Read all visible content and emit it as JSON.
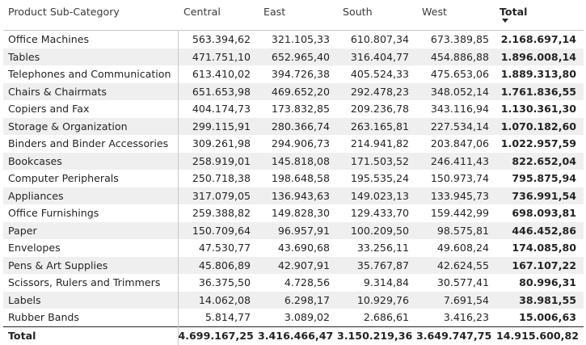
{
  "matrix": {
    "headers": {
      "category": "Product Sub-Category",
      "regions": [
        "Central",
        "East",
        "South",
        "West"
      ],
      "total": "Total",
      "sort_icon": "sort-descending-icon"
    },
    "rows": [
      {
        "name": "Office Machines",
        "values": [
          "563.394,62",
          "321.105,33",
          "610.807,34",
          "673.389,85"
        ],
        "total": "2.168.697,14"
      },
      {
        "name": "Tables",
        "values": [
          "471.751,10",
          "652.965,40",
          "316.404,77",
          "454.886,88"
        ],
        "total": "1.896.008,14"
      },
      {
        "name": "Telephones and Communication",
        "values": [
          "613.410,02",
          "394.726,38",
          "405.524,33",
          "475.653,06"
        ],
        "total": "1.889.313,80"
      },
      {
        "name": "Chairs & Chairmats",
        "values": [
          "651.653,98",
          "469.652,20",
          "292.478,23",
          "348.052,14"
        ],
        "total": "1.761.836,55"
      },
      {
        "name": "Copiers and Fax",
        "values": [
          "404.174,73",
          "173.832,85",
          "209.236,78",
          "343.116,94"
        ],
        "total": "1.130.361,30"
      },
      {
        "name": "Storage & Organization",
        "values": [
          "299.115,91",
          "280.366,74",
          "263.165,81",
          "227.534,14"
        ],
        "total": "1.070.182,60"
      },
      {
        "name": "Binders and Binder Accessories",
        "values": [
          "309.261,98",
          "294.906,73",
          "214.941,82",
          "203.847,06"
        ],
        "total": "1.022.957,59"
      },
      {
        "name": "Bookcases",
        "values": [
          "258.919,01",
          "145.818,08",
          "171.503,52",
          "246.411,43"
        ],
        "total": "822.652,04"
      },
      {
        "name": "Computer Peripherals",
        "values": [
          "250.718,38",
          "198.648,58",
          "195.535,24",
          "150.973,74"
        ],
        "total": "795.875,94"
      },
      {
        "name": "Appliances",
        "values": [
          "317.079,05",
          "136.943,63",
          "149.023,13",
          "133.945,73"
        ],
        "total": "736.991,54"
      },
      {
        "name": "Office Furnishings",
        "values": [
          "259.388,82",
          "149.828,30",
          "129.433,70",
          "159.442,99"
        ],
        "total": "698.093,81"
      },
      {
        "name": "Paper",
        "values": [
          "150.709,64",
          "96.957,91",
          "100.209,50",
          "98.575,81"
        ],
        "total": "446.452,86"
      },
      {
        "name": "Envelopes",
        "values": [
          "47.530,77",
          "43.690,68",
          "33.256,11",
          "49.608,24"
        ],
        "total": "174.085,80"
      },
      {
        "name": "Pens & Art Supplies",
        "values": [
          "45.806,89",
          "42.907,91",
          "35.767,87",
          "42.624,55"
        ],
        "total": "167.107,22"
      },
      {
        "name": "Scissors, Rulers and Trimmers",
        "values": [
          "36.375,50",
          "4.728,56",
          "9.314,84",
          "30.577,41"
        ],
        "total": "80.996,31"
      },
      {
        "name": "Labels",
        "values": [
          "14.062,08",
          "6.298,17",
          "10.929,76",
          "7.691,54"
        ],
        "total": "38.981,55"
      },
      {
        "name": "Rubber Bands",
        "values": [
          "5.814,77",
          "3.089,02",
          "2.686,61",
          "3.416,23"
        ],
        "total": "15.006,63"
      }
    ],
    "totals": {
      "label": "Total",
      "values": [
        "4.699.167,25",
        "3.416.466,47",
        "3.150.219,36",
        "3.649.747,75"
      ],
      "total": "14.915.600,82"
    }
  }
}
